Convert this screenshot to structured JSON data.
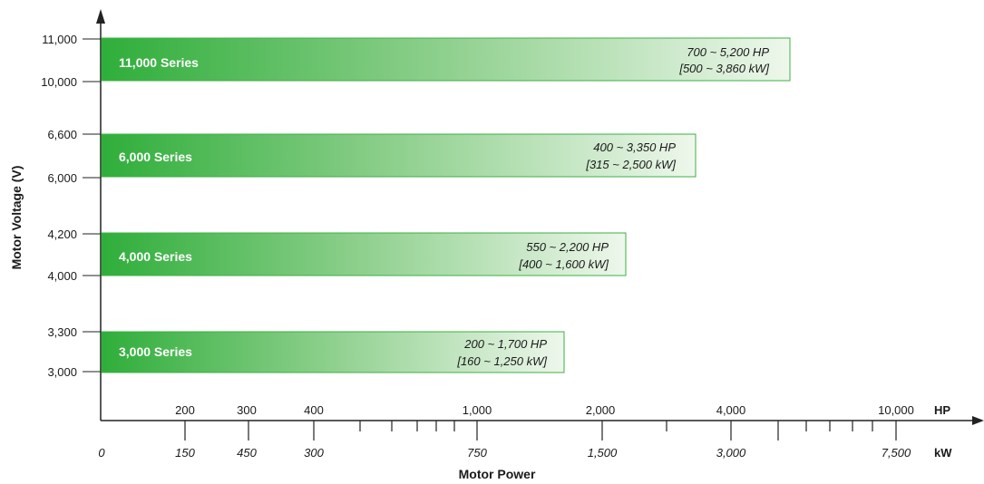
{
  "colors": {
    "bar_dark": "#33b03d",
    "bar_light": "#e9f5e6",
    "bar_border": "#3cb043",
    "axis": "#222222"
  },
  "chart_data": {
    "type": "bar",
    "orientation": "horizontal-range",
    "xlabel": "Motor Power",
    "ylabel": "Motor Voltage (V)",
    "x_scale": "log",
    "x_units": [
      "HP",
      "kW"
    ],
    "hp_ticks": [
      "200",
      "300",
      "400",
      "1,000",
      "2,000",
      "4,000",
      "10,000"
    ],
    "kw_ticks": [
      "0",
      "150",
      "450",
      "300",
      "750",
      "1,500",
      "3,000",
      "7,500"
    ],
    "y_ticks": [
      "11,000",
      "10,000",
      "6,600",
      "6,000",
      "4,200",
      "4,000",
      "3,300",
      "3,000"
    ],
    "series": [
      {
        "label": "11,000 Series",
        "voltage_min": 10000,
        "voltage_max": 11000,
        "hp_min": 700,
        "hp_max": 5200,
        "kw_min": 500,
        "kw_max": 3860,
        "hp_text": "700 ~ 5,200 HP",
        "kw_text": "[500 ~ 3,860 kW]"
      },
      {
        "label": "6,000 Series",
        "voltage_min": 6000,
        "voltage_max": 6600,
        "hp_min": 400,
        "hp_max": 3350,
        "kw_min": 315,
        "kw_max": 2500,
        "hp_text": "400 ~ 3,350 HP",
        "kw_text": "[315 ~ 2,500 kW]"
      },
      {
        "label": "4,000 Series",
        "voltage_min": 4000,
        "voltage_max": 4200,
        "hp_min": 550,
        "hp_max": 2200,
        "kw_min": 400,
        "kw_max": 1600,
        "hp_text": "550 ~ 2,200 HP",
        "kw_text": "[400 ~ 1,600 kW]"
      },
      {
        "label": "3,000 Series",
        "voltage_min": 3000,
        "voltage_max": 3300,
        "hp_min": 200,
        "hp_max": 1700,
        "kw_min": 160,
        "kw_max": 1250,
        "hp_text": "200 ~ 1,700 HP",
        "kw_text": "[160 ~ 1,250 kW]"
      }
    ]
  }
}
